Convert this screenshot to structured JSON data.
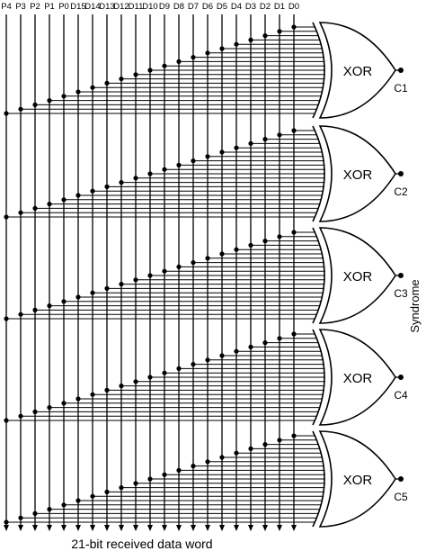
{
  "bit_labels": [
    "P4",
    "P3",
    "P2",
    "P1",
    "P0",
    "D15",
    "D14",
    "D13",
    "D12",
    "D11",
    "D10",
    "D9",
    "D8",
    "D7",
    "D6",
    "D5",
    "D4",
    "D3",
    "D2",
    "D1",
    "D0"
  ],
  "gates": [
    {
      "type": "XOR",
      "output": "C1",
      "taps": [
        20,
        19,
        18,
        17,
        16,
        15,
        14,
        13,
        12,
        11,
        10,
        9,
        8,
        7,
        6,
        5,
        4,
        3,
        2,
        1,
        0
      ]
    },
    {
      "type": "XOR",
      "output": "C2",
      "taps": [
        20,
        19,
        18,
        17,
        16,
        15,
        14,
        13,
        12,
        11,
        10,
        9,
        8,
        7,
        6,
        5,
        4,
        3,
        2,
        1,
        0
      ]
    },
    {
      "type": "XOR",
      "output": "C3",
      "taps": [
        20,
        19,
        18,
        17,
        16,
        15,
        14,
        13,
        12,
        11,
        10,
        9,
        8,
        7,
        6,
        5,
        4,
        3,
        2,
        1,
        0
      ]
    },
    {
      "type": "XOR",
      "output": "C4",
      "taps": [
        20,
        19,
        18,
        17,
        16,
        15,
        14,
        13,
        12,
        11,
        10,
        9,
        8,
        7,
        6,
        5,
        4,
        3,
        2,
        1,
        0
      ]
    },
    {
      "type": "XOR",
      "output": "C5",
      "taps": [
        20,
        19,
        18,
        17,
        16,
        15,
        14,
        13,
        12,
        11,
        10,
        9,
        8,
        7,
        6,
        5,
        4,
        3,
        2,
        1,
        0
      ]
    }
  ],
  "syndrome_label": "Syndrome",
  "footer_label": "21-bit received data word"
}
